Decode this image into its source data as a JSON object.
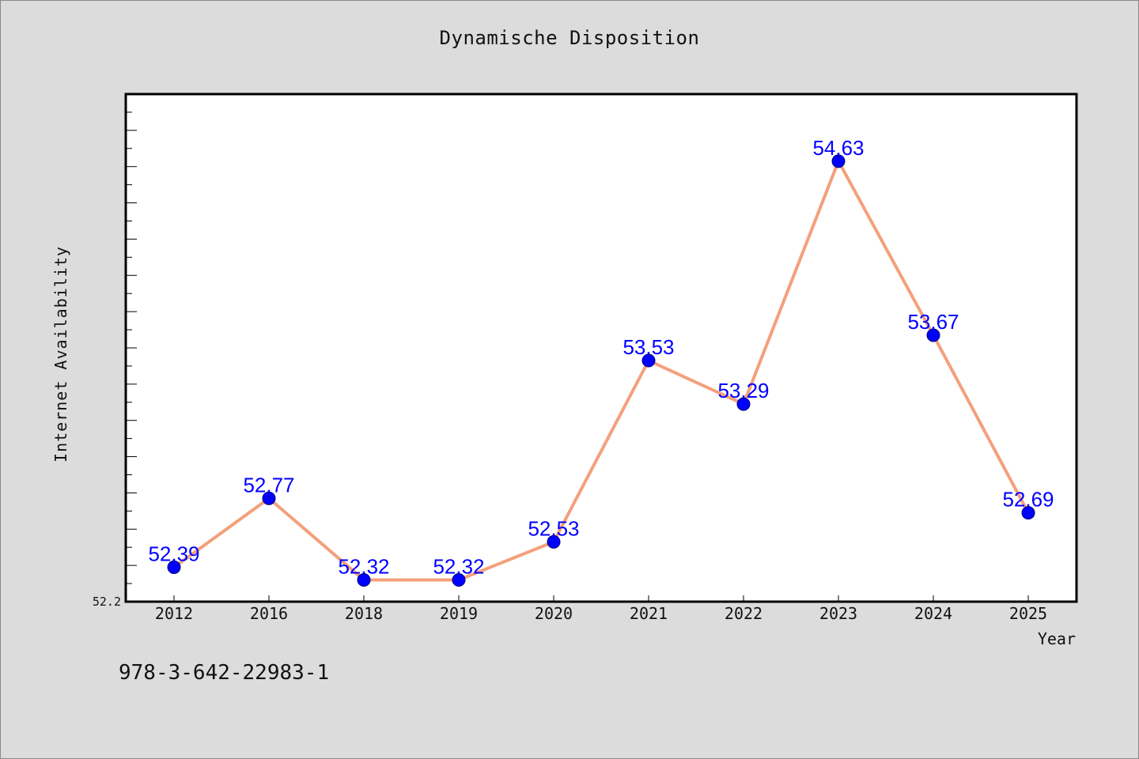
{
  "chart_data": {
    "type": "line",
    "title": "Dynamische Disposition",
    "xlabel": "Year",
    "ylabel": "Internet Availability",
    "categories": [
      "2012",
      "2016",
      "2018",
      "2019",
      "2020",
      "2021",
      "2022",
      "2023",
      "2024",
      "2025"
    ],
    "series": [
      {
        "values": [
          52.39,
          52.77,
          52.32,
          52.32,
          52.53,
          53.53,
          53.29,
          54.63,
          53.67,
          52.69
        ],
        "labels": [
          "52.39",
          "52.77",
          "52.32",
          "52.32",
          "52.53",
          "53.53",
          "53.29",
          "54.63",
          "53.67",
          "52.69"
        ],
        "line_color": "#f4a07c",
        "marker_color": "#0000ff"
      }
    ],
    "ylim": [
      52.2,
      55.0
    ],
    "ytick_labels": [
      "52.2"
    ],
    "grid": false,
    "legend": "none"
  },
  "footer": {
    "text": "978-3-642-22983-1"
  }
}
